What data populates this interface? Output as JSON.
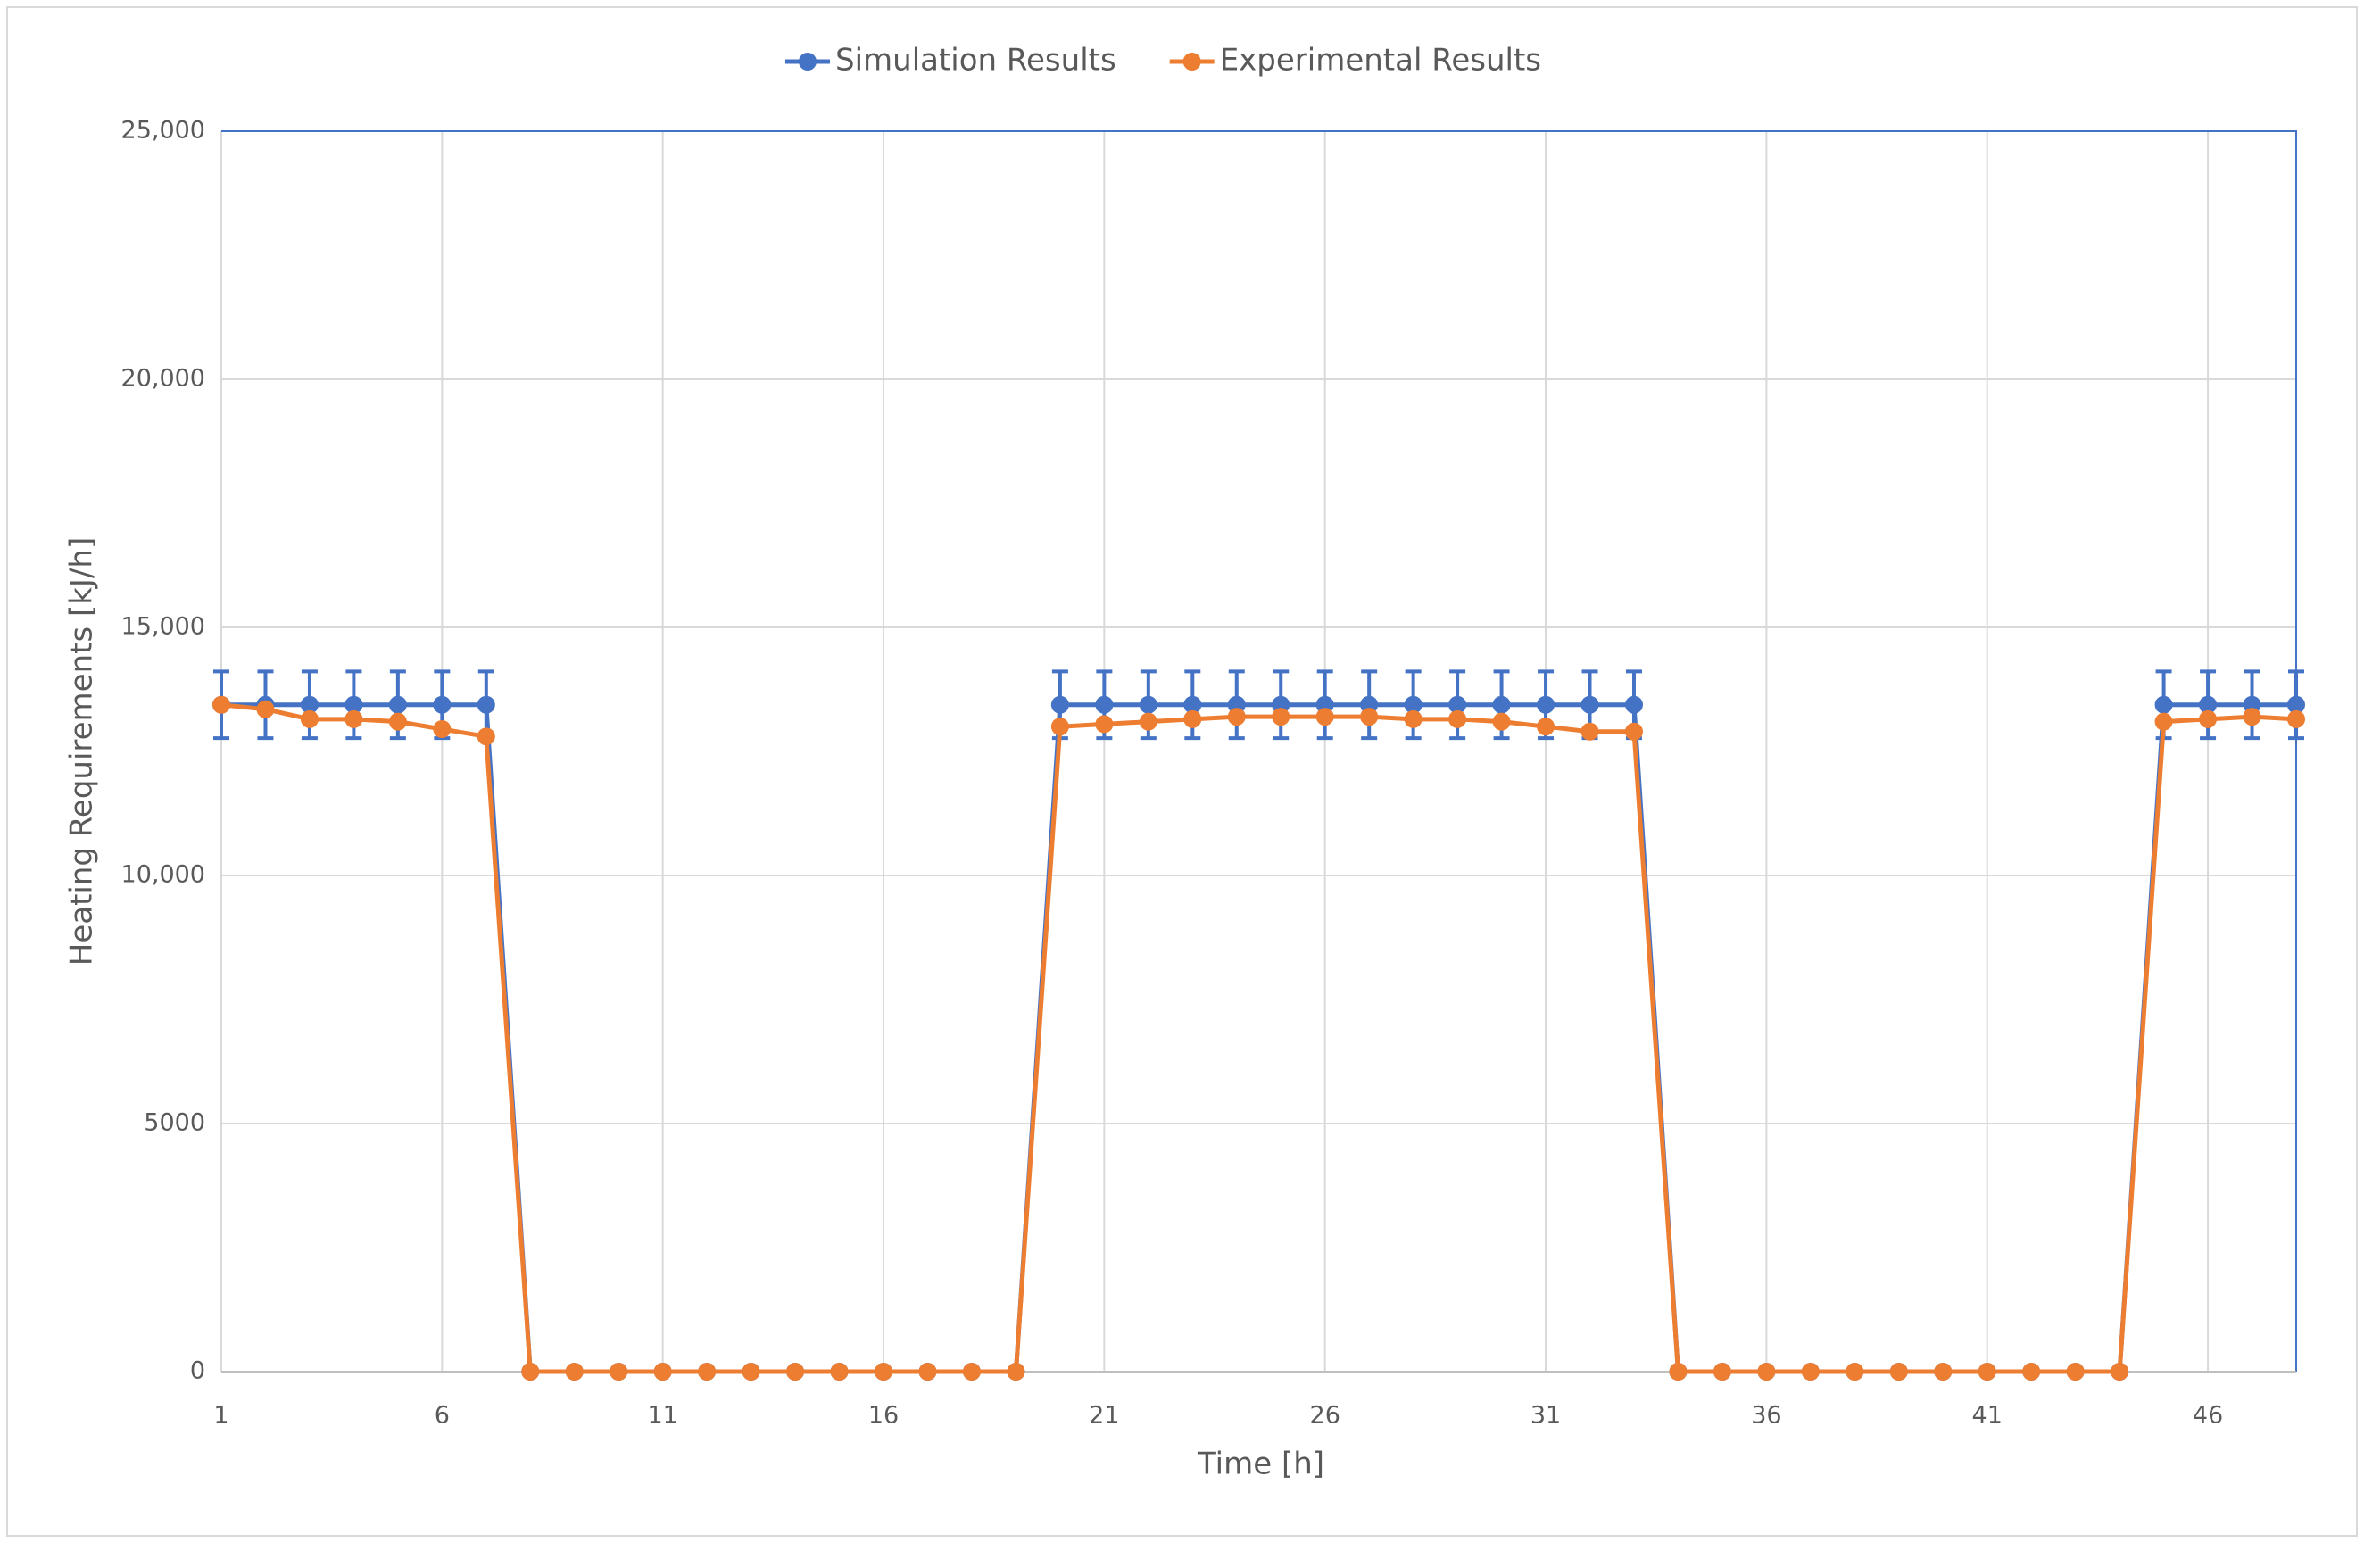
{
  "chart_data": {
    "type": "line",
    "xlabel": "Time [h]",
    "ylabel": "Heating Requirements [kJ/h]",
    "x": [
      1,
      2,
      3,
      4,
      5,
      6,
      7,
      8,
      9,
      10,
      11,
      12,
      13,
      14,
      15,
      16,
      17,
      18,
      19,
      20,
      21,
      22,
      23,
      24,
      25,
      26,
      27,
      28,
      29,
      30,
      31,
      32,
      33,
      34,
      35,
      36,
      37,
      38,
      39,
      40,
      41,
      42,
      43,
      44,
      45,
      46,
      47,
      48
    ],
    "series": [
      {
        "name": "Simulation Results",
        "color": "#4472c4",
        "values": [
          13440,
          13440,
          13440,
          13440,
          13440,
          13440,
          13440,
          0,
          0,
          0,
          0,
          0,
          0,
          0,
          0,
          0,
          0,
          0,
          0,
          13440,
          13440,
          13440,
          13440,
          13440,
          13440,
          13440,
          13440,
          13440,
          13440,
          13440,
          13440,
          13440,
          13440,
          0,
          0,
          0,
          0,
          0,
          0,
          0,
          0,
          0,
          0,
          0,
          13440,
          13440,
          13440,
          13440
        ],
        "errors": [
          672,
          672,
          672,
          672,
          672,
          672,
          672,
          0,
          0,
          0,
          0,
          0,
          0,
          0,
          0,
          0,
          0,
          0,
          0,
          672,
          672,
          672,
          672,
          672,
          672,
          672,
          672,
          672,
          672,
          672,
          672,
          672,
          672,
          0,
          0,
          0,
          0,
          0,
          0,
          0,
          0,
          0,
          0,
          0,
          672,
          672,
          672,
          672
        ]
      },
      {
        "name": "Experimental Results",
        "color": "#ed7d31",
        "values": [
          13440,
          13350,
          13150,
          13150,
          13100,
          12950,
          12800,
          0,
          0,
          0,
          0,
          0,
          0,
          0,
          0,
          0,
          0,
          0,
          0,
          13000,
          13050,
          13100,
          13150,
          13200,
          13200,
          13200,
          13200,
          13150,
          13150,
          13100,
          13000,
          12900,
          12900,
          0,
          0,
          0,
          0,
          0,
          0,
          0,
          0,
          0,
          0,
          0,
          13100,
          13150,
          13200,
          13150
        ]
      }
    ],
    "xlim": [
      1,
      48
    ],
    "xticks": [
      1,
      6,
      11,
      16,
      21,
      26,
      31,
      36,
      41,
      46
    ],
    "ylim": [
      0,
      25000
    ],
    "yticks": [
      0,
      5000,
      {
        "value": 10000,
        "label": "10,000"
      },
      {
        "value": 15000,
        "label": "15,000"
      },
      {
        "value": 20000,
        "label": "20,000"
      },
      {
        "value": 25000,
        "label": "25,000"
      }
    ],
    "grid": true,
    "legend": "top"
  }
}
